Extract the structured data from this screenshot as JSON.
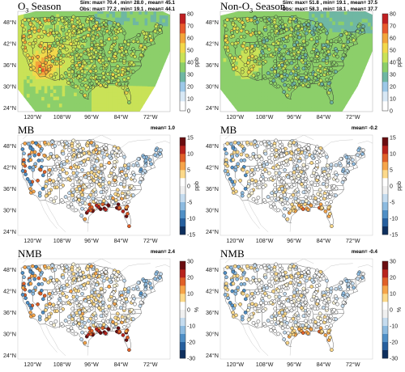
{
  "panels": [
    {
      "id": "o3-sim",
      "title_main": "O",
      "title_sub": "3",
      "title_rest": " Season",
      "stats": [
        "Sim: max= 70.4 , min= 28.0 , mean= 45.1",
        "Obs: max= 77.2 , min= 19.1 , mean= 44.1"
      ],
      "mean_label": "",
      "colorbar": {
        "unit": "ppb",
        "ticks": [
          "80",
          "70",
          "60",
          "50",
          "40",
          "30",
          "20",
          "10",
          "0"
        ],
        "type": "sequential"
      },
      "bias": "conc"
    },
    {
      "id": "nono3-sim",
      "title_main": "Non-O",
      "title_sub": "3",
      "title_rest": " Season",
      "stats": [
        "Sim: max= 51.8 , min= 19.1 , mean= 37.5",
        "Obs: max= 58.3 , min= 18.1 , mean= 37.7"
      ],
      "mean_label": "",
      "colorbar": {
        "unit": "ppb",
        "ticks": [
          "80",
          "70",
          "60",
          "50",
          "40",
          "30",
          "20",
          "10",
          "0"
        ],
        "type": "sequential"
      },
      "bias": "conc"
    },
    {
      "id": "mb-o3",
      "title_main": "MB",
      "title_sub": "",
      "title_rest": "",
      "stats": [],
      "mean_label": "mean= 1.0",
      "colorbar": {
        "unit": "ppb",
        "ticks": [
          "15",
          "10",
          "5",
          "0",
          "-5",
          "-10",
          "-15"
        ],
        "type": "diverging"
      },
      "bias": "pos"
    },
    {
      "id": "mb-nono3",
      "title_main": "MB",
      "title_sub": "",
      "title_rest": "",
      "stats": [],
      "mean_label": "mean= -0.2",
      "colorbar": {
        "unit": "ppb",
        "ticks": [
          "15",
          "10",
          "5",
          "0",
          "-5",
          "-10",
          "-15"
        ],
        "type": "diverging"
      },
      "bias": "neu"
    },
    {
      "id": "nmb-o3",
      "title_main": "NMB",
      "title_sub": "",
      "title_rest": "",
      "stats": [],
      "mean_label": "mean= 2.4",
      "colorbar": {
        "unit": "%",
        "ticks": [
          "30",
          "20",
          "10",
          "0",
          "-10",
          "-20",
          "-30"
        ],
        "type": "diverging"
      },
      "bias": "pos"
    },
    {
      "id": "nmb-nono3",
      "title_main": "NMB",
      "title_sub": "",
      "title_rest": "",
      "stats": [],
      "mean_label": "mean= -0.4",
      "colorbar": {
        "unit": "%",
        "ticks": [
          "30",
          "20",
          "10",
          "0",
          "-10",
          "-20",
          "-30"
        ],
        "type": "diverging"
      },
      "bias": "neu"
    }
  ],
  "lat_labels": [
    "48°N",
    "42°N",
    "36°N",
    "30°N",
    "24°N"
  ],
  "lon_labels": [
    "120°W",
    "108°W",
    "96°W",
    "84°W",
    "72°W"
  ],
  "colors": {
    "seq": [
      "#ffffff",
      "#d8e8f5",
      "#9cc8e8",
      "#6fb7a3",
      "#8ccf6a",
      "#c9e257",
      "#f2d84a",
      "#f2a53a",
      "#e85a2c",
      "#c01f22"
    ],
    "div_pos": [
      "#fff7d8",
      "#fcd98a",
      "#f6a54a",
      "#e06028",
      "#b8231c",
      "#6a0d10"
    ],
    "div_neg": [
      "#f2f2f2",
      "#c5dcef",
      "#8dbbe0",
      "#4f8fc6",
      "#265f9e",
      "#0e2f5e"
    ]
  }
}
